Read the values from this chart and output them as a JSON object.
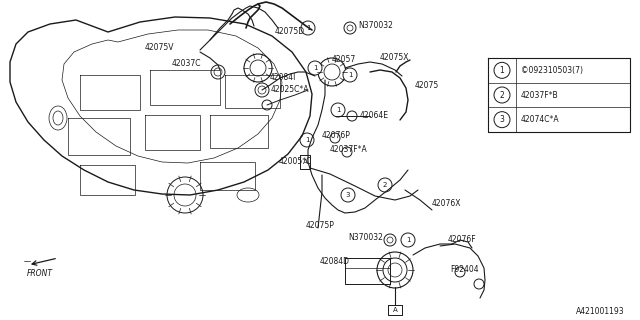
{
  "bg_color": "#ffffff",
  "line_color": "#1a1a1a",
  "legend_items": [
    {
      "num": "1",
      "text": "©092310503(7)"
    },
    {
      "num": "2",
      "text": "42037F*B"
    },
    {
      "num": "3",
      "text": "42074C*A"
    }
  ],
  "diagram_number": "A421001193",
  "figsize": [
    6.4,
    3.2
  ],
  "dpi": 100
}
